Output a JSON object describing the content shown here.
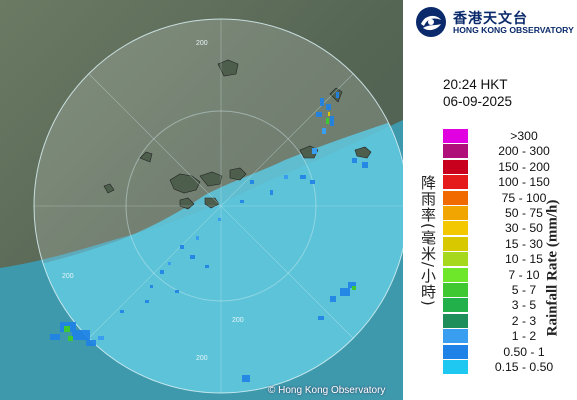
{
  "header": {
    "org_name_cn": "香港天文台",
    "org_name_en": "HONG KONG OBSERVATORY"
  },
  "timestamp": {
    "time": "20:24 HKT",
    "date": "06-09-2025"
  },
  "legend": {
    "title_cn": "降雨率(毫米/小時)",
    "title_en": "Rainfall Rate (mm/h)",
    "items": [
      {
        "label": ">300",
        "color": "#e000e0"
      },
      {
        "label": "200 - 300",
        "color": "#b0107a"
      },
      {
        "label": "150 - 200",
        "color": "#c8001e"
      },
      {
        "label": "100 - 150",
        "color": "#e51a1a"
      },
      {
        "label": "75 - 100",
        "color": "#f06a00"
      },
      {
        "label": "50 - 75",
        "color": "#f0a500"
      },
      {
        "label": "30 - 50",
        "color": "#f4c800"
      },
      {
        "label": "15 - 30",
        "color": "#d7c800"
      },
      {
        "label": "10 - 15",
        "color": "#a6d81e"
      },
      {
        "label": "7 - 10",
        "color": "#6ee62a"
      },
      {
        "label": "5 - 7",
        "color": "#40c832"
      },
      {
        "label": "3 - 5",
        "color": "#22b04a"
      },
      {
        "label": "2 - 3",
        "color": "#1e8f5a"
      },
      {
        "label": "1 - 2",
        "color": "#3a9ef0"
      },
      {
        "label": "0.50 - 1",
        "color": "#1e82e6"
      },
      {
        "label": "0.15 - 0.50",
        "color": "#1ec8f0"
      }
    ]
  },
  "map": {
    "range_labels": [
      "200",
      "200",
      "200",
      "200"
    ],
    "copyright": "© Hong Kong Observatory"
  },
  "colors": {
    "land": "#5a6b58",
    "sea_coverage": "#62c8da",
    "outer_sea": "#3f9fb3",
    "ring": "#d8f0f4"
  }
}
